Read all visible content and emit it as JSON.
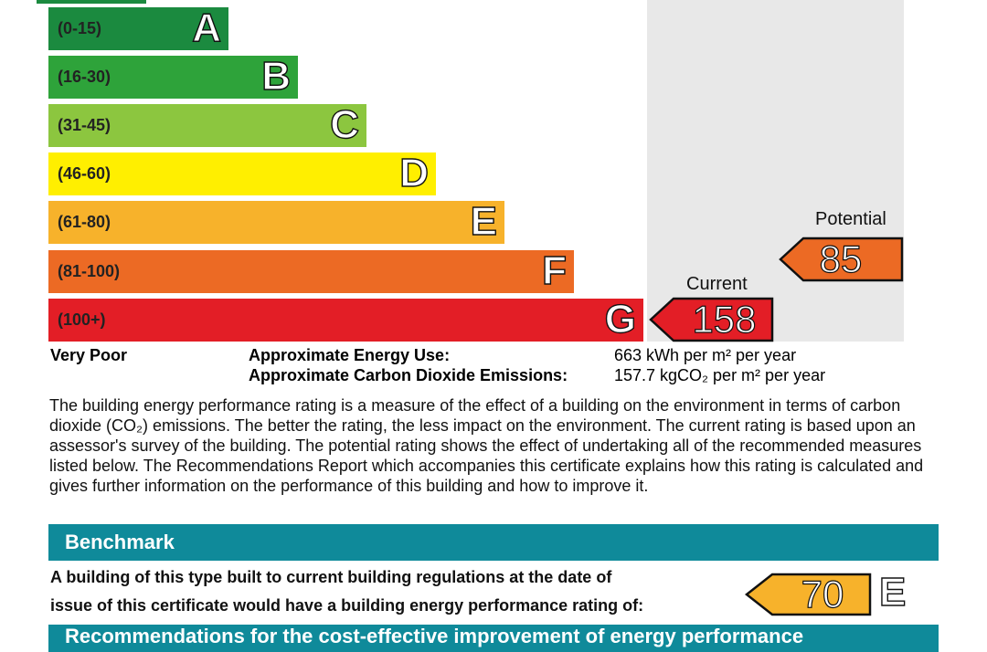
{
  "bands": [
    {
      "range": "(0-15)",
      "letter": "A",
      "color": "#1b8a3f"
    },
    {
      "range": "(16-30)",
      "letter": "B",
      "color": "#2ea33a"
    },
    {
      "range": "(31-45)",
      "letter": "C",
      "color": "#8cc63f"
    },
    {
      "range": "(46-60)",
      "letter": "D",
      "color": "#ffef00"
    },
    {
      "range": "(61-80)",
      "letter": "E",
      "color": "#f7b22b"
    },
    {
      "range": "(81-100)",
      "letter": "F",
      "color": "#ec6a24"
    },
    {
      "range": "(100+)",
      "letter": "G",
      "color": "#e31e26"
    }
  ],
  "scale_bottom_label": "Very Poor",
  "potential": {
    "label": "Potential",
    "value": "85",
    "color": "#ec6a24"
  },
  "current": {
    "label": "Current",
    "value": "158",
    "color": "#e31e26"
  },
  "energy_use": {
    "label": "Approximate Energy Use:",
    "value": "663 kWh per m² per year"
  },
  "co2": {
    "label": "Approximate Carbon Dioxide Emissions:",
    "value": "157.7 kgCO₂ per m² per year"
  },
  "description": "The building energy performance rating is a measure of the effect of a building on the environment in terms of carbon dioxide (CO₂) emissions. The better the rating, the less impact on the environment. The current rating is based upon an assessor's survey of the building. The potential rating shows the effect of undertaking all of the recommended measures listed below. The Recommendations Report which accompanies this certificate explains how this rating is calculated and gives further information on the performance of this building and how to improve it.",
  "benchmark": {
    "title": "Benchmark",
    "line1": "A building of this type built to current building regulations at the date of",
    "line2": "issue of this certificate would have a building energy performance rating of:",
    "value": "70",
    "letter": "E",
    "color": "#f7b22b"
  },
  "recommendations_title": "Recommendations for the cost-effective improvement of energy performance"
}
